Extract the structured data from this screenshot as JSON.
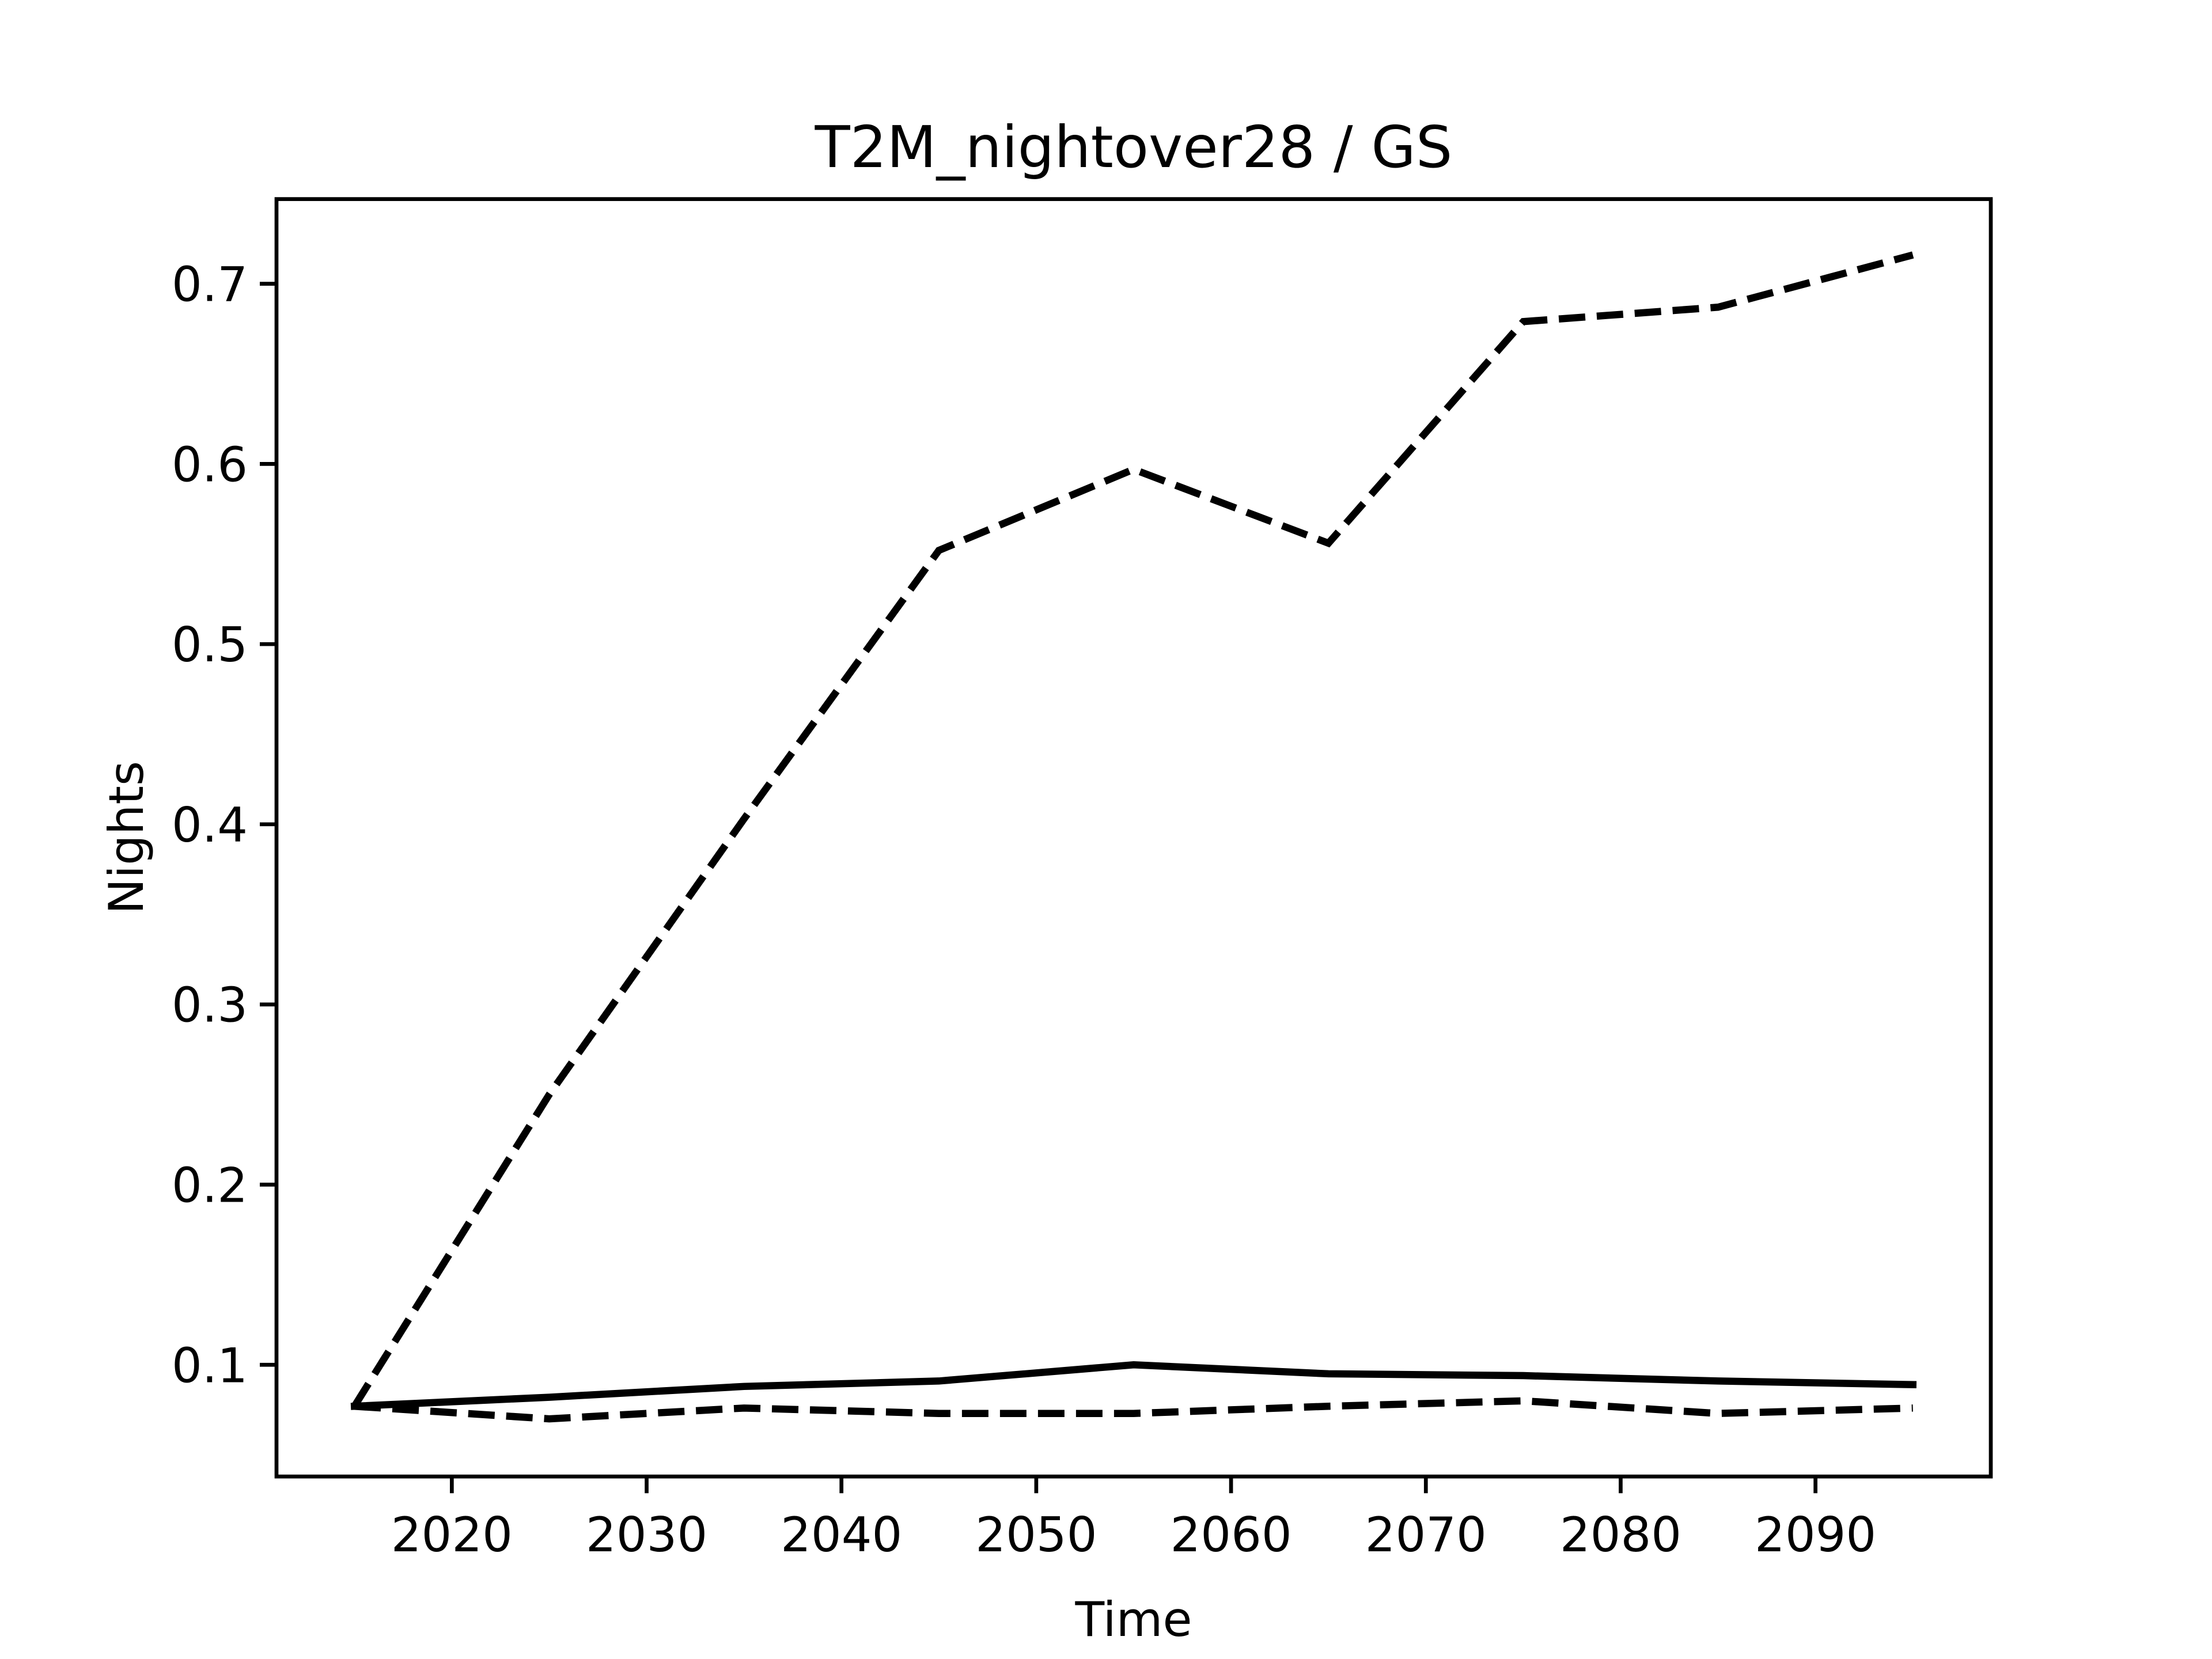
{
  "chart_data": {
    "type": "line",
    "title": "T2M_nightover28 / GS",
    "x_label": "Time",
    "y_label": "Nights",
    "x": [
      2015,
      2025,
      2035,
      2045,
      2055,
      2065,
      2075,
      2085,
      2095
    ],
    "series": [
      {
        "color": "#000000",
        "dashed": true,
        "values": [
          0.077,
          0.25,
          0.403,
          0.552,
          0.597,
          0.556,
          0.679,
          0.687,
          0.716
        ]
      },
      {
        "color": "#000000",
        "dashed": false,
        "values": [
          0.077,
          0.082,
          0.088,
          0.091,
          0.1,
          0.095,
          0.094,
          0.091,
          0.089
        ]
      },
      {
        "color": "#000000",
        "dashed": true,
        "values": [
          0.077,
          0.07,
          0.076,
          0.073,
          0.073,
          0.077,
          0.08,
          0.073,
          0.076
        ]
      }
    ],
    "xlim": [
      2011,
      2099
    ],
    "xticks": [
      2020,
      2030,
      2040,
      2050,
      2060,
      2070,
      2080,
      2090
    ],
    "ylim": [
      0.038,
      0.747
    ],
    "yticks": [
      0.1,
      0.2,
      0.3,
      0.4,
      0.5,
      0.6,
      0.7
    ],
    "grid": false
  }
}
